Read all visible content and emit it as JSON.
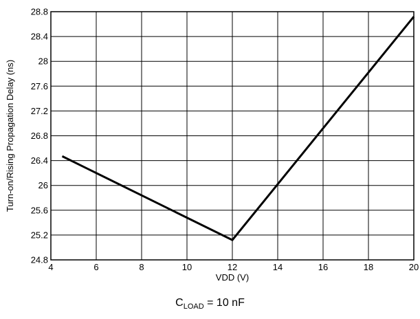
{
  "chart_data": {
    "type": "line",
    "xlabel": "VDD (V)",
    "ylabel": "Turn-on/Rising Propagation Delay (ns)",
    "xlim": [
      4,
      20
    ],
    "ylim": [
      24.8,
      28.8
    ],
    "xticks": [
      4,
      6,
      8,
      10,
      12,
      14,
      16,
      18,
      20
    ],
    "yticks": [
      24.8,
      25.2,
      25.6,
      26,
      26.4,
      26.8,
      27.2,
      27.6,
      28,
      28.4,
      28.8
    ],
    "ytick_labels": [
      "24.8",
      "25.2",
      "25.6",
      "26",
      "26.4",
      "26.8",
      "27.2",
      "27.6",
      "28",
      "28.4",
      "28.8"
    ],
    "grid": true,
    "series": [
      {
        "x": [
          4.5,
          12,
          20
        ],
        "y": [
          26.47,
          25.12,
          28.72
        ]
      }
    ],
    "line_color": "#000000"
  },
  "caption": {
    "main": "C",
    "sub": "LOAD",
    "rest": " = 10 nF"
  }
}
